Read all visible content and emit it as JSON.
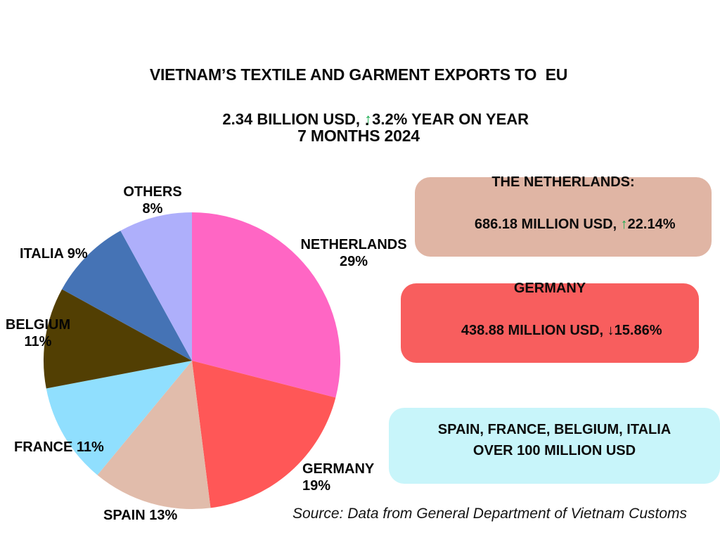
{
  "title": {
    "line1": "VIETNAM’S TEXTILE AND GARMENT EXPORTS TO  EU",
    "line2": "7 MONTHS 2024"
  },
  "subtitle": {
    "prefix": "2.34 BILLION USD, ",
    "arrow": "↑",
    "suffix": "3.2% YEAR ON YEAR",
    "dot": "."
  },
  "chart_data": {
    "type": "pie",
    "title": "Vietnam's textile and garment exports to EU, 7 months 2024 - share by destination country",
    "labels": [
      "NETHERLANDS",
      "GERMANY",
      "SPAIN",
      "FRANCE",
      "BELGIUM",
      "ITALIA",
      "OTHERS"
    ],
    "values": [
      29,
      19,
      13,
      11,
      11,
      9,
      8
    ],
    "unit": "%",
    "colors": [
      "#FF66C4",
      "#FF5757",
      "#E1BCAB",
      "#90DFFE",
      "#523F03",
      "#4573B5",
      "#AEAFFB"
    ],
    "start_angle_deg": 0,
    "direction": "clockwise",
    "legend": "none, labels placed around pie",
    "total_value_billion_usd": 2.34,
    "yoy_change_percent": 3.2
  },
  "pie_labels": [
    {
      "line1": "NETHERLANDS",
      "line2": "29%"
    },
    {
      "line1": "GERMANY",
      "line2": "19%"
    },
    {
      "line1": "SPAIN 13%",
      "line2": ""
    },
    {
      "line1": "FRANCE 11%",
      "line2": ""
    },
    {
      "line1": "BELGIUM",
      "line2": "11%"
    },
    {
      "line1": "ITALIA 9%",
      "line2": ""
    },
    {
      "line1": "OTHERS",
      "line2": "8%"
    }
  ],
  "boxes": {
    "netherlands": {
      "line1": "THE NETHERLANDS:",
      "line2_pre": "686.18 MILLION USD, ",
      "arrow": "↑",
      "line2_post": "22.14%",
      "bg": "#E0B5A4"
    },
    "germany": {
      "line1": "GERMANY",
      "line2_pre": "438.88 MILLION USD, ",
      "arrow": "↓",
      "line2_post": "15.86%",
      "bg": "#F85E5E"
    },
    "group": {
      "line1": "SPAIN, FRANCE, BELGIUM, ITALIA",
      "line2": "OVER 100 MILLION USD",
      "bg": "#C8F5FA"
    }
  },
  "source": "Source: Data from General Department of Vietnam Customs",
  "colors": {
    "arrow_up_green": "#1CAD52",
    "arrow_down_dark": "#101010",
    "text": "#0a0a0a",
    "background": "#ffffff"
  }
}
